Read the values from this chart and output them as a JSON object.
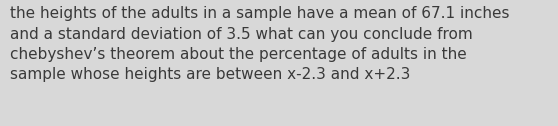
{
  "text": "the heights of the adults in a sample have a mean of 67.1 inches\nand a standard deviation of 3.5 what can you conclude from\nchebyshev’s theorem about the percentage of adults in the\nsample whose heights are between x-2.3 and x+2.3",
  "background_color": "#d8d8d8",
  "text_color": "#3a3a3a",
  "font_size": 11.0,
  "fig_width": 5.58,
  "fig_height": 1.26,
  "dpi": 100
}
